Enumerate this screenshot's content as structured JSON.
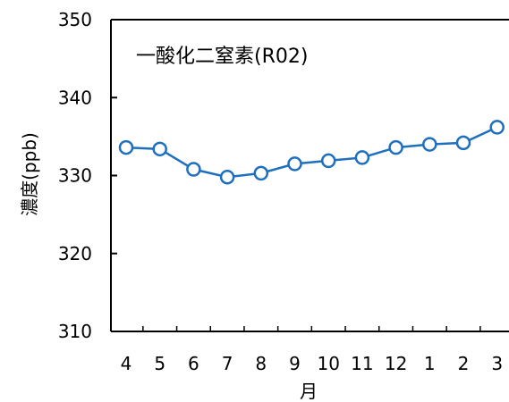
{
  "chart_data": {
    "type": "line",
    "title": "一酸化二窒素(R02)",
    "xlabel": "月",
    "ylabel": "濃度(ppb)",
    "categories": [
      "4",
      "5",
      "6",
      "7",
      "8",
      "9",
      "10",
      "11",
      "12",
      "1",
      "2",
      "3"
    ],
    "series": [
      {
        "values": [
          333.6,
          333.4,
          330.8,
          329.8,
          330.3,
          331.5,
          331.9,
          332.3,
          333.6,
          334.0,
          334.2,
          336.2
        ]
      }
    ],
    "ylim": [
      310,
      350
    ],
    "yticks": [
      "310",
      "320",
      "330",
      "340",
      "350"
    ],
    "grid": false,
    "legend": "none",
    "colors": {
      "line": "#1f6fbf",
      "marker_fill": "#ffffff",
      "axis": "#000000"
    }
  }
}
